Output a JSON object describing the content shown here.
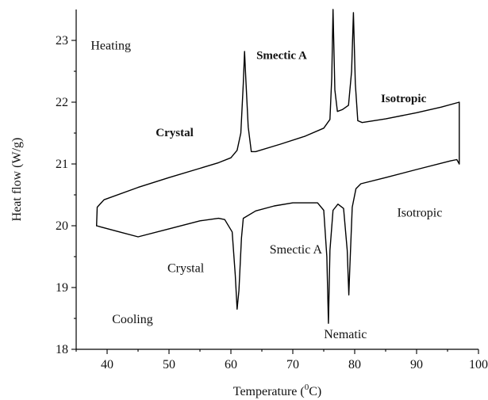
{
  "chart_data": {
    "type": "line",
    "xlabel_main": "Temperature (",
    "xlabel_sup": "0",
    "xlabel_end": "C)",
    "ylabel": "Heat flow (W/g)",
    "xlim": [
      35,
      100
    ],
    "ylim": [
      18,
      23.5
    ],
    "x_ticks": [
      "40",
      "50",
      "60",
      "70",
      "80",
      "90",
      "100"
    ],
    "y_ticks": [
      "18",
      "19",
      "20",
      "21",
      "22",
      "23"
    ],
    "grid": false,
    "series": [
      {
        "points": [
          [
            38.3,
            20.0
          ],
          [
            38.4,
            20.3
          ],
          [
            39.5,
            20.42
          ],
          [
            45,
            20.62
          ],
          [
            50,
            20.78
          ],
          [
            55,
            20.93
          ],
          [
            58,
            21.02
          ],
          [
            60,
            21.1
          ],
          [
            61,
            21.22
          ],
          [
            61.6,
            21.5
          ],
          [
            62.0,
            22.3
          ],
          [
            62.2,
            22.82
          ],
          [
            62.4,
            22.4
          ],
          [
            62.8,
            21.6
          ],
          [
            63.3,
            21.2
          ],
          [
            64,
            21.2
          ],
          [
            68,
            21.32
          ],
          [
            72,
            21.45
          ],
          [
            75,
            21.58
          ],
          [
            76.0,
            21.72
          ],
          [
            76.3,
            22.4
          ],
          [
            76.5,
            23.5
          ],
          [
            76.8,
            22.2
          ],
          [
            77.2,
            21.85
          ],
          [
            78,
            21.88
          ],
          [
            79.0,
            21.95
          ],
          [
            79.5,
            22.5
          ],
          [
            79.8,
            23.45
          ],
          [
            80.1,
            22.3
          ],
          [
            80.5,
            21.7
          ],
          [
            81.2,
            21.67
          ],
          [
            85,
            21.73
          ],
          [
            90,
            21.83
          ],
          [
            94,
            21.92
          ],
          [
            96.9,
            22.0
          ],
          [
            96.9,
            21.0
          ]
        ]
      },
      {
        "points": [
          [
            96.9,
            21.0
          ],
          [
            96.5,
            21.07
          ],
          [
            95.5,
            21.05
          ],
          [
            90,
            20.91
          ],
          [
            85,
            20.78
          ],
          [
            81,
            20.68
          ],
          [
            80.2,
            20.6
          ],
          [
            79.6,
            20.3
          ],
          [
            79.2,
            19.3
          ],
          [
            79.05,
            18.88
          ],
          [
            78.8,
            19.6
          ],
          [
            78.2,
            20.28
          ],
          [
            77.3,
            20.35
          ],
          [
            76.5,
            20.25
          ],
          [
            76.0,
            19.6
          ],
          [
            75.75,
            18.42
          ],
          [
            75.5,
            19.5
          ],
          [
            75.0,
            20.25
          ],
          [
            74,
            20.37
          ],
          [
            70,
            20.37
          ],
          [
            67,
            20.32
          ],
          [
            64,
            20.24
          ],
          [
            62,
            20.12
          ],
          [
            61.7,
            19.8
          ],
          [
            61.3,
            18.95
          ],
          [
            61.0,
            18.65
          ],
          [
            60.7,
            19.2
          ],
          [
            60.2,
            19.9
          ],
          [
            59,
            20.1
          ],
          [
            58,
            20.12
          ],
          [
            55,
            20.08
          ],
          [
            50,
            19.95
          ],
          [
            45,
            19.82
          ],
          [
            42,
            19.9
          ],
          [
            39,
            19.98
          ],
          [
            38.3,
            20.0
          ]
        ]
      }
    ],
    "annotations": [
      {
        "text": "Heating",
        "style": "normal",
        "x": 40.6,
        "y": 22.85
      },
      {
        "text": "Crystal",
        "style": "bold",
        "x": 50.9,
        "y": 21.45
      },
      {
        "text": "Smectic A",
        "style": "bold",
        "x": 68.2,
        "y": 22.7
      },
      {
        "text": "Isotropic",
        "style": "bold",
        "x": 87.9,
        "y": 22.0
      },
      {
        "text": "Isotropic",
        "style": "normal",
        "x": 90.5,
        "y": 20.15
      },
      {
        "text": "Smectic A",
        "style": "normal",
        "x": 70.5,
        "y": 19.55
      },
      {
        "text": "Crystal",
        "style": "normal",
        "x": 52.7,
        "y": 19.25
      },
      {
        "text": "Cooling",
        "style": "normal",
        "x": 44.1,
        "y": 18.42
      },
      {
        "text": "Nematic",
        "style": "normal",
        "x": 78.5,
        "y": 18.18
      }
    ]
  }
}
